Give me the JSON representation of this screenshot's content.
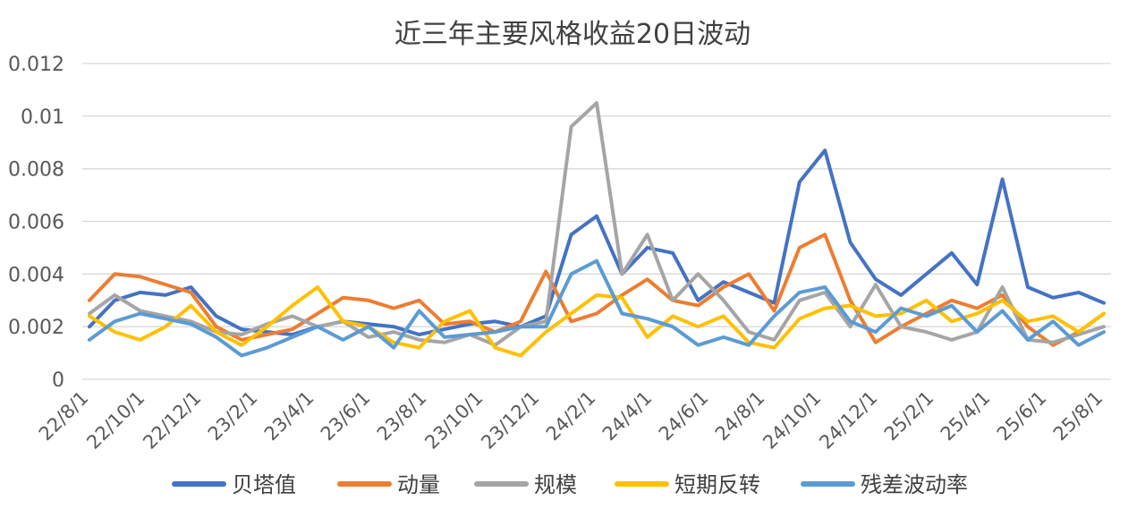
{
  "chart_data": {
    "type": "line",
    "title": "近三年主要风格收益20日波动",
    "xlabel": "",
    "ylabel": "",
    "ylim": [
      0,
      0.012
    ],
    "y_ticks": [
      0,
      0.002,
      0.004,
      0.006,
      0.008,
      0.01,
      0.012
    ],
    "y_tick_labels": [
      "0",
      "0.002",
      "0.004",
      "0.006",
      "0.008",
      "0.01",
      "0.012"
    ],
    "x_tick_labels": [
      "22/8/1",
      "22/10/1",
      "22/12/1",
      "23/2/1",
      "23/4/1",
      "23/6/1",
      "23/8/1",
      "23/10/1",
      "23/12/1",
      "24/2/1",
      "24/4/1",
      "24/6/1",
      "24/8/1",
      "24/10/1",
      "24/12/1",
      "25/2/1",
      "25/4/1",
      "25/6/1",
      "25/8/1"
    ],
    "grid": "horizontal",
    "legend_position": "bottom",
    "x": [
      "22/8/1",
      "22/9/1",
      "22/10/1",
      "22/11/1",
      "22/12/1",
      "23/1/1",
      "23/2/1",
      "23/3/1",
      "23/4/1",
      "23/5/1",
      "23/6/1",
      "23/7/1",
      "23/8/1",
      "23/9/1",
      "23/10/1",
      "23/11/1",
      "23/12/1",
      "24/1/1",
      "24/2/1",
      "24/3/1",
      "24/3/15",
      "24/4/1",
      "24/5/1",
      "24/6/1",
      "24/7/1",
      "24/8/1",
      "24/9/1",
      "24/10/1",
      "24/11/1",
      "24/11/15",
      "24/12/1",
      "25/1/1",
      "25/2/1",
      "25/3/1",
      "25/4/1",
      "25/4/15",
      "25/5/1",
      "25/6/1",
      "25/7/1",
      "25/8/1",
      "25/8/25"
    ],
    "series": [
      {
        "name": "贝塔值",
        "color": "#4472C4",
        "values": [
          0.002,
          0.003,
          0.0033,
          0.0032,
          0.0035,
          0.0024,
          0.0019,
          0.0018,
          0.0017,
          0.002,
          0.0022,
          0.0021,
          0.002,
          0.0017,
          0.0019,
          0.0021,
          0.0022,
          0.002,
          0.0024,
          0.0055,
          0.0062,
          0.004,
          0.005,
          0.0048,
          0.003,
          0.0037,
          0.0033,
          0.0029,
          0.0075,
          0.0087,
          0.0052,
          0.0038,
          0.0032,
          0.004,
          0.0048,
          0.0036,
          0.0076,
          0.0035,
          0.0031,
          0.0033,
          0.0029
        ]
      },
      {
        "name": "动量",
        "color": "#ED7D31",
        "values": [
          0.003,
          0.004,
          0.0039,
          0.0036,
          0.0033,
          0.002,
          0.0015,
          0.0017,
          0.0019,
          0.0025,
          0.0031,
          0.003,
          0.0027,
          0.003,
          0.0021,
          0.0022,
          0.0018,
          0.0022,
          0.0041,
          0.0022,
          0.0025,
          0.0032,
          0.0038,
          0.003,
          0.0028,
          0.0035,
          0.004,
          0.0026,
          0.005,
          0.0055,
          0.003,
          0.0014,
          0.002,
          0.0025,
          0.003,
          0.0027,
          0.0032,
          0.002,
          0.0013,
          0.0018,
          0.0025
        ]
      },
      {
        "name": "规模",
        "color": "#A5A5A5",
        "values": [
          0.0025,
          0.0032,
          0.0026,
          0.0024,
          0.0022,
          0.0018,
          0.0017,
          0.0021,
          0.0024,
          0.002,
          0.0022,
          0.0016,
          0.0018,
          0.0015,
          0.0014,
          0.0017,
          0.0013,
          0.002,
          0.0022,
          0.0096,
          0.0105,
          0.004,
          0.0055,
          0.003,
          0.004,
          0.003,
          0.0018,
          0.0015,
          0.003,
          0.0033,
          0.002,
          0.0036,
          0.002,
          0.0018,
          0.0015,
          0.0018,
          0.0035,
          0.0015,
          0.0014,
          0.0017,
          0.002
        ]
      },
      {
        "name": "短期反转",
        "color": "#FFC000",
        "values": [
          0.0024,
          0.0018,
          0.0015,
          0.002,
          0.0028,
          0.0018,
          0.0013,
          0.002,
          0.0028,
          0.0035,
          0.0022,
          0.002,
          0.0014,
          0.0012,
          0.0022,
          0.0026,
          0.0012,
          0.0009,
          0.0018,
          0.0025,
          0.0032,
          0.0031,
          0.0016,
          0.0024,
          0.002,
          0.0024,
          0.0014,
          0.0012,
          0.0023,
          0.0027,
          0.0028,
          0.0024,
          0.0025,
          0.003,
          0.0022,
          0.0025,
          0.003,
          0.0022,
          0.0024,
          0.0018,
          0.0025
        ]
      },
      {
        "name": "残差波动率",
        "color": "#5B9BD5",
        "values": [
          0.0015,
          0.0022,
          0.0025,
          0.0023,
          0.0021,
          0.0016,
          0.0009,
          0.0012,
          0.0016,
          0.002,
          0.0015,
          0.002,
          0.0012,
          0.0026,
          0.0016,
          0.0017,
          0.0018,
          0.002,
          0.002,
          0.004,
          0.0045,
          0.0025,
          0.0023,
          0.002,
          0.0013,
          0.0016,
          0.0013,
          0.0024,
          0.0033,
          0.0035,
          0.0022,
          0.0018,
          0.0027,
          0.0024,
          0.0028,
          0.0018,
          0.0026,
          0.0015,
          0.0022,
          0.0013,
          0.0018
        ]
      }
    ]
  }
}
